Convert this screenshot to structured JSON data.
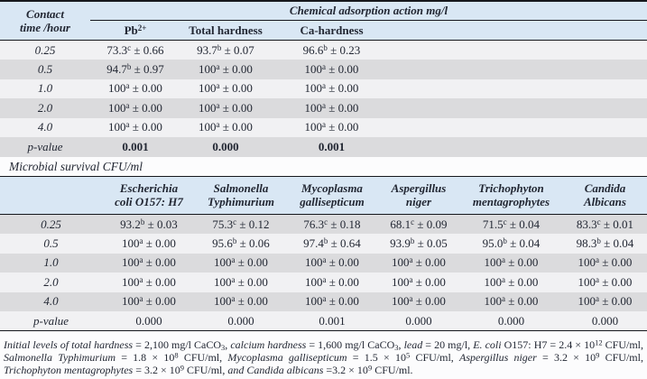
{
  "colors": {
    "header_bg": "#d9e7f4",
    "row_light": "#f1f1f3",
    "row_gray": "#dbdbdd",
    "text": "#222733",
    "border": "#16181d"
  },
  "chemical": {
    "corner_line1": "Contact",
    "corner_line2": "time /hour",
    "title": "Chemical adsorption action mg/l",
    "columns": [
      {
        "base": "Pb",
        "sup": "2+"
      },
      {
        "base": "Total hardness"
      },
      {
        "base": "Ca-hardness"
      }
    ],
    "rows": [
      {
        "label": "0.25",
        "cells": [
          {
            "v": "73.3",
            "sig": "c",
            "sd": "0.66"
          },
          {
            "v": "93.7",
            "sig": "b",
            "sd": "0.07"
          },
          {
            "v": "96.6",
            "sig": "b",
            "sd": "0.23"
          }
        ]
      },
      {
        "label": "0.5",
        "cells": [
          {
            "v": "94.7",
            "sig": "b",
            "sd": "0.97"
          },
          {
            "v": "100",
            "sig": "a",
            "sd": "0.00"
          },
          {
            "v": "100",
            "sig": "a",
            "sd": "0.00"
          }
        ]
      },
      {
        "label": "1.0",
        "cells": [
          {
            "v": "100",
            "sig": "a",
            "sd": "0.00"
          },
          {
            "v": "100",
            "sig": "a",
            "sd": "0.00"
          },
          {
            "v": "100",
            "sig": "a",
            "sd": "0.00"
          }
        ]
      },
      {
        "label": "2.0",
        "cells": [
          {
            "v": "100",
            "sig": "a",
            "sd": "0.00"
          },
          {
            "v": "100",
            "sig": "a",
            "sd": "0.00"
          },
          {
            "v": "100",
            "sig": "a",
            "sd": "0.00"
          }
        ]
      },
      {
        "label": "4.0",
        "cells": [
          {
            "v": "100",
            "sig": "a",
            "sd": "0.00"
          },
          {
            "v": "100",
            "sig": "a",
            "sd": "0.00"
          },
          {
            "v": "100",
            "sig": "a",
            "sd": "0.00"
          }
        ]
      }
    ],
    "p_row": {
      "label": "p-value",
      "values": [
        "0.001",
        "0.000",
        "0.001"
      ],
      "bold": true
    }
  },
  "microbial": {
    "section_label": "Microbial survival CFU/ml",
    "columns": [
      [
        "Escherichia",
        "coli O157: H7"
      ],
      [
        "Salmonella",
        "Typhimurium"
      ],
      [
        "Mycoplasma",
        "gallisepticum"
      ],
      [
        "Aspergillus",
        "niger"
      ],
      [
        "Trichophyton",
        "mentagrophytes"
      ],
      [
        "Candida",
        "Albicans"
      ]
    ],
    "rows": [
      {
        "label": "0.25",
        "cells": [
          {
            "v": "93.2",
            "sig": "b",
            "sd": "0.03"
          },
          {
            "v": "75.3",
            "sig": "c",
            "sd": "0.12"
          },
          {
            "v": "76.3",
            "sig": "c",
            "sd": "0.18"
          },
          {
            "v": "68.1",
            "sig": "c",
            "sd": "0.09"
          },
          {
            "v": "71.5",
            "sig": "c",
            "sd": "0.04"
          },
          {
            "v": "83.3",
            "sig": "c",
            "sd": "0.01"
          }
        ]
      },
      {
        "label": "0.5",
        "cells": [
          {
            "v": "100",
            "sig": "a",
            "sd": "0.00"
          },
          {
            "v": "95.6",
            "sig": "b",
            "sd": "0.06"
          },
          {
            "v": "97.4",
            "sig": "b",
            "sd": "0.64"
          },
          {
            "v": "93.9",
            "sig": "b",
            "sd": "0.05"
          },
          {
            "v": "95.0",
            "sig": "b",
            "sd": "0.04"
          },
          {
            "v": "98.3",
            "sig": "b",
            "sd": "0.04"
          }
        ]
      },
      {
        "label": "1.0",
        "cells": [
          {
            "v": "100",
            "sig": "a",
            "sd": "0.00"
          },
          {
            "v": "100",
            "sig": "a",
            "sd": "0.00"
          },
          {
            "v": "100",
            "sig": "a",
            "sd": "0.00"
          },
          {
            "v": "100",
            "sig": "a",
            "sd": "0.00"
          },
          {
            "v": "100",
            "sig": "a",
            "sd": "0.00"
          },
          {
            "v": "100",
            "sig": "a",
            "sd": "0.00"
          }
        ]
      },
      {
        "label": "2.0",
        "cells": [
          {
            "v": "100",
            "sig": "a",
            "sd": "0.00"
          },
          {
            "v": "100",
            "sig": "a",
            "sd": "0.00"
          },
          {
            "v": "100",
            "sig": "a",
            "sd": "0.00"
          },
          {
            "v": "100",
            "sig": "a",
            "sd": "0.00"
          },
          {
            "v": "100",
            "sig": "a",
            "sd": "0.00"
          },
          {
            "v": "100",
            "sig": "a",
            "sd": "0.00"
          }
        ]
      },
      {
        "label": "4.0",
        "cells": [
          {
            "v": "100",
            "sig": "a",
            "sd": "0.00"
          },
          {
            "v": "100",
            "sig": "a",
            "sd": "0.00"
          },
          {
            "v": "100",
            "sig": "a",
            "sd": "0.00"
          },
          {
            "v": "100",
            "sig": "a",
            "sd": "0.00"
          },
          {
            "v": "100",
            "sig": "a",
            "sd": "0.00"
          },
          {
            "v": "100",
            "sig": "a",
            "sd": "0.00"
          }
        ]
      }
    ],
    "p_row": {
      "label": "p-value",
      "values": [
        "0.000",
        "0.000",
        "0.001",
        "0.000",
        "0.000",
        "0.000"
      ],
      "bold": false
    }
  },
  "footnote_segments": [
    {
      "t": "Initial levels of total hardness",
      "style": "italic"
    },
    {
      "t": " = 2,100 mg/l CaCO",
      "style": "normal"
    },
    {
      "t": "3",
      "style": "sub"
    },
    {
      "t": ", ",
      "style": "normal"
    },
    {
      "t": "calcium hardness",
      "style": "italic"
    },
    {
      "t": " = 1,600 mg/l CaCO",
      "style": "normal"
    },
    {
      "t": "3",
      "style": "sub"
    },
    {
      "t": ", ",
      "style": "normal"
    },
    {
      "t": "lead",
      "style": "italic"
    },
    {
      "t": " = 20 mg/l, ",
      "style": "normal"
    },
    {
      "t": "E. coli",
      "style": "italic"
    },
    {
      "t": " O157: H7 = 2.4 × 10",
      "style": "normal"
    },
    {
      "t": "12",
      "style": "sup"
    },
    {
      "t": " CFU/ml, ",
      "style": "normal"
    },
    {
      "t": "Salmonella Typhimurium",
      "style": "italic"
    },
    {
      "t": " = 1.8 × 10",
      "style": "normal"
    },
    {
      "t": "8",
      "style": "sup"
    },
    {
      "t": " CFU/ml, ",
      "style": "normal"
    },
    {
      "t": "Mycoplasma gallisepticum",
      "style": "italic"
    },
    {
      "t": " = 1.5 × 10",
      "style": "normal"
    },
    {
      "t": "5",
      "style": "sup"
    },
    {
      "t": " CFU/ml, ",
      "style": "normal"
    },
    {
      "t": "Aspergillus niger",
      "style": "italic"
    },
    {
      "t": " = 3.2 × 10",
      "style": "normal"
    },
    {
      "t": "9",
      "style": "sup"
    },
    {
      "t": " CFU/ml, ",
      "style": "normal"
    },
    {
      "t": "Trichophyton mentagrophytes",
      "style": "italic"
    },
    {
      "t": " = 3.2 × 10",
      "style": "normal"
    },
    {
      "t": "9",
      "style": "sup"
    },
    {
      "t": " CFU/ml, ",
      "style": "normal"
    },
    {
      "t": "and",
      "style": "italic"
    },
    {
      "t": " ",
      "style": "normal"
    },
    {
      "t": "Candida albicans",
      "style": "italic"
    },
    {
      "t": " =3.2 × 10",
      "style": "normal"
    },
    {
      "t": "9",
      "style": "sup"
    },
    {
      "t": " CFU/ml.",
      "style": "normal"
    }
  ]
}
